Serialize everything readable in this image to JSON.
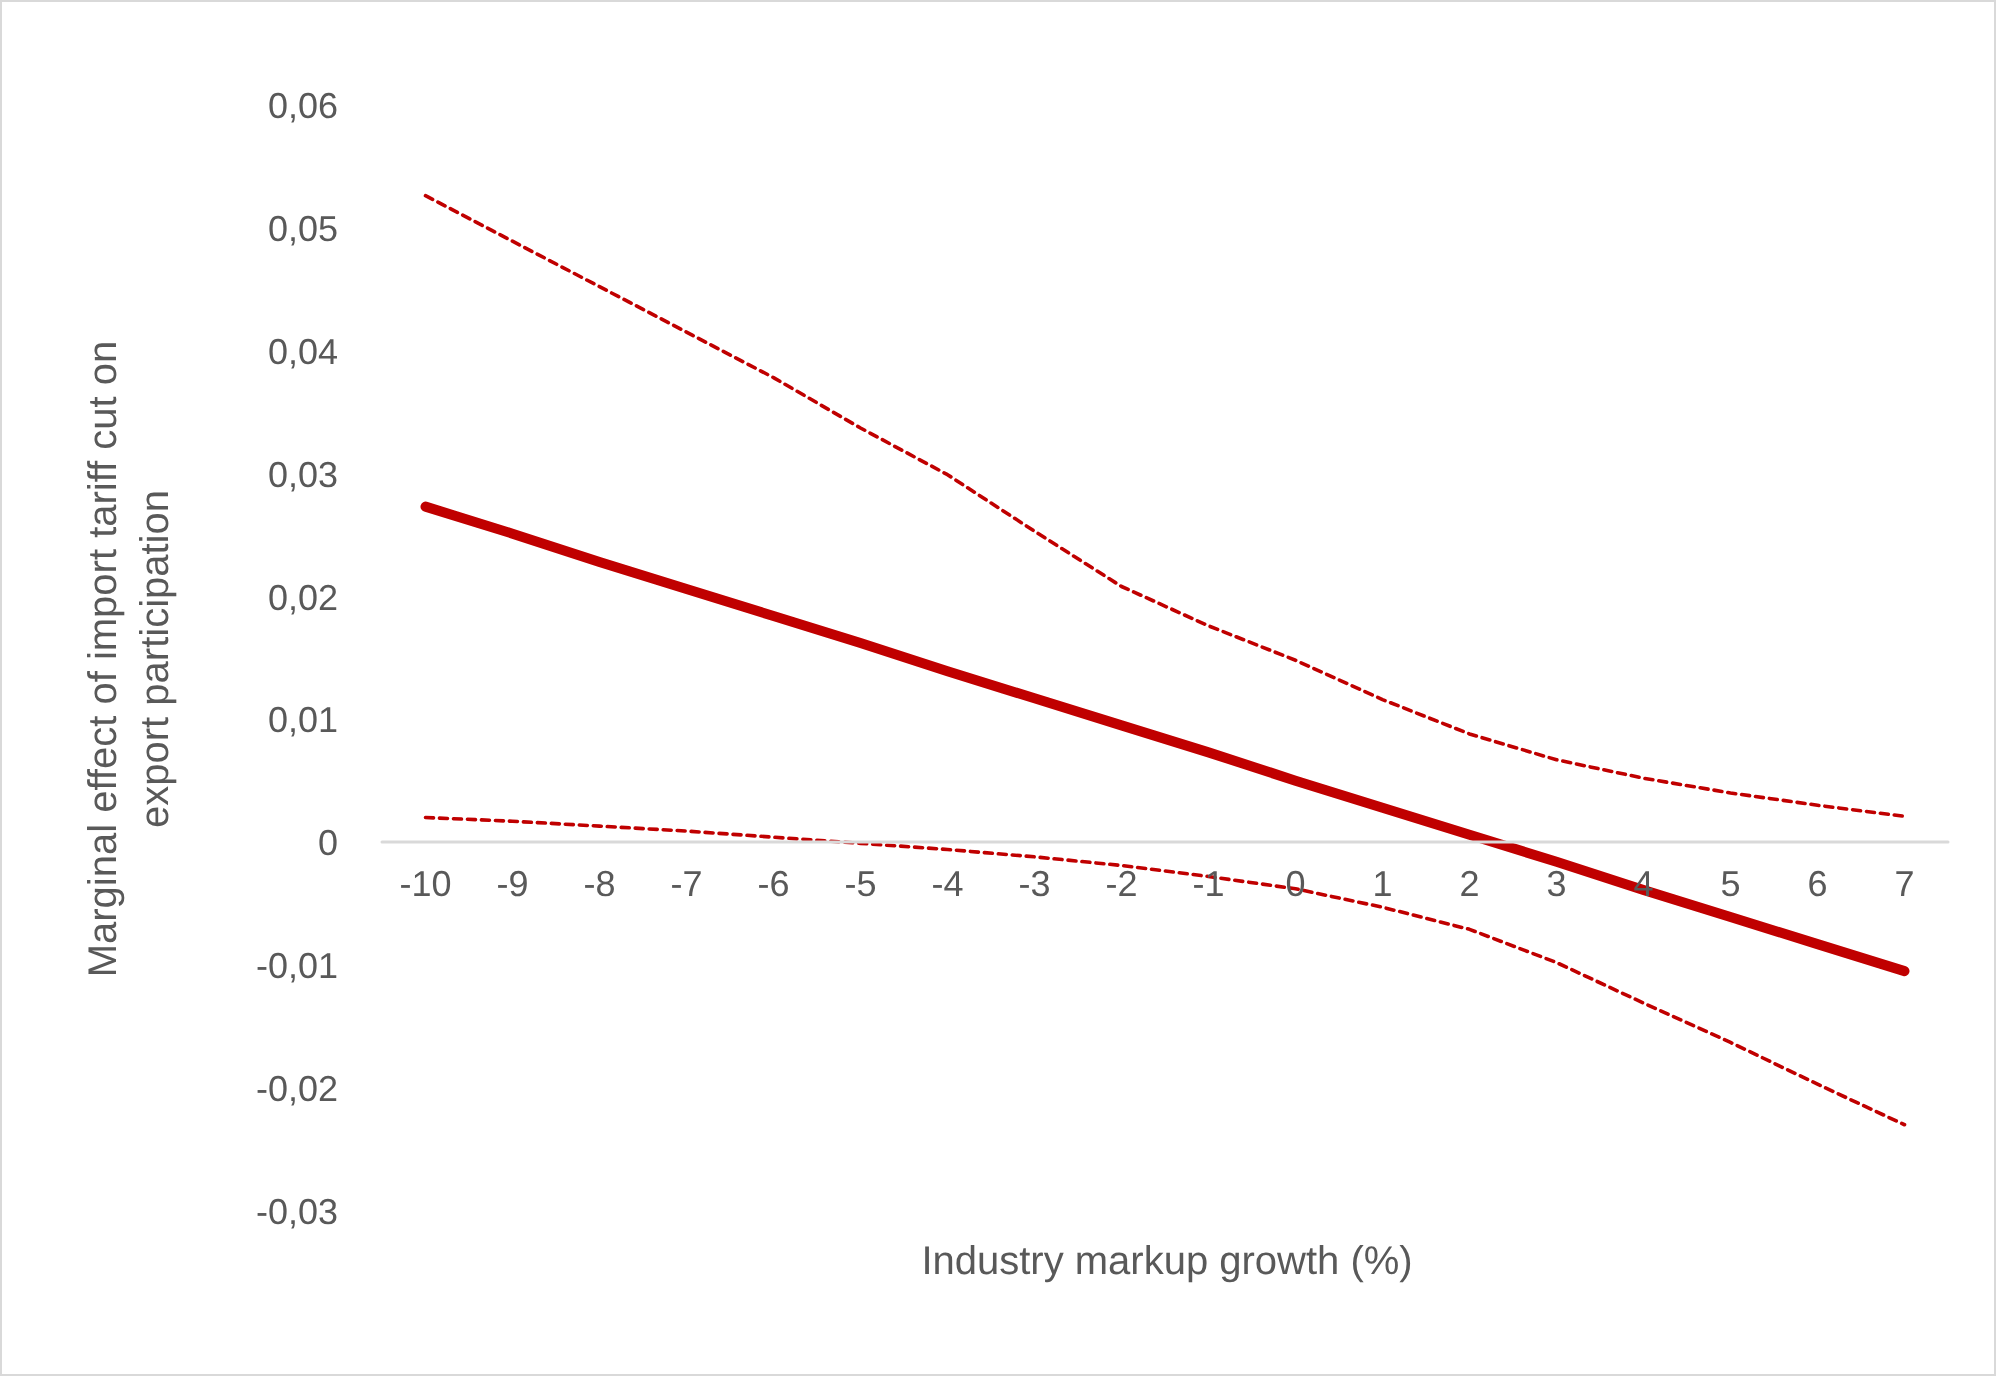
{
  "chart_data": {
    "type": "line",
    "xlabel": "Industry markup growth (%)",
    "ylabel": "Marginal effect of import tariff cut on\nexport participation",
    "categories": [
      "-10",
      "-9",
      "-8",
      "-7",
      "-6",
      "-5",
      "-4",
      "-3",
      "-2",
      "-1",
      "0",
      "1",
      "2",
      "3",
      "4",
      "5",
      "6",
      "7"
    ],
    "series": [
      {
        "color": "#c00000",
        "line_style": "solid",
        "values": [
          0.0274,
          0.0252,
          0.0229,
          0.0207,
          0.0185,
          0.0163,
          0.014,
          0.0118,
          0.0096,
          0.0074,
          0.0051,
          0.0029,
          0.0007,
          -0.0015,
          -0.0038,
          -0.006,
          -0.0082,
          -0.0104
        ]
      },
      {
        "color": "#c00000",
        "line_style": "dashed",
        "values": [
          0.0527,
          0.049,
          0.0453,
          0.0416,
          0.0379,
          0.0338,
          0.03,
          0.0254,
          0.0209,
          0.0177,
          0.0149,
          0.0117,
          0.0089,
          0.0068,
          0.0053,
          0.0041,
          0.0031,
          0.0022
        ]
      },
      {
        "color": "#c00000",
        "line_style": "dashed",
        "values": [
          0.0021,
          0.0018,
          0.0014,
          0.001,
          0.0005,
          0.0,
          -0.0005,
          -0.0011,
          -0.0018,
          -0.0027,
          -0.0037,
          -0.0052,
          -0.007,
          -0.0097,
          -0.013,
          -0.0162,
          -0.0196,
          -0.0229
        ]
      }
    ],
    "ylim": [
      -0.03,
      0.06
    ],
    "yticks": [
      {
        "value": -0.03,
        "label": "-0,03"
      },
      {
        "value": -0.02,
        "label": "-0,02"
      },
      {
        "value": -0.01,
        "label": "-0,01"
      },
      {
        "value": 0,
        "label": "0"
      },
      {
        "value": 0.01,
        "label": "0,01"
      },
      {
        "value": 0.02,
        "label": "0,02"
      },
      {
        "value": 0.03,
        "label": "0,03"
      },
      {
        "value": 0.04,
        "label": "0,04"
      },
      {
        "value": 0.05,
        "label": "0,05"
      },
      {
        "value": 0.06,
        "label": "0,06"
      }
    ],
    "marker": "none"
  }
}
